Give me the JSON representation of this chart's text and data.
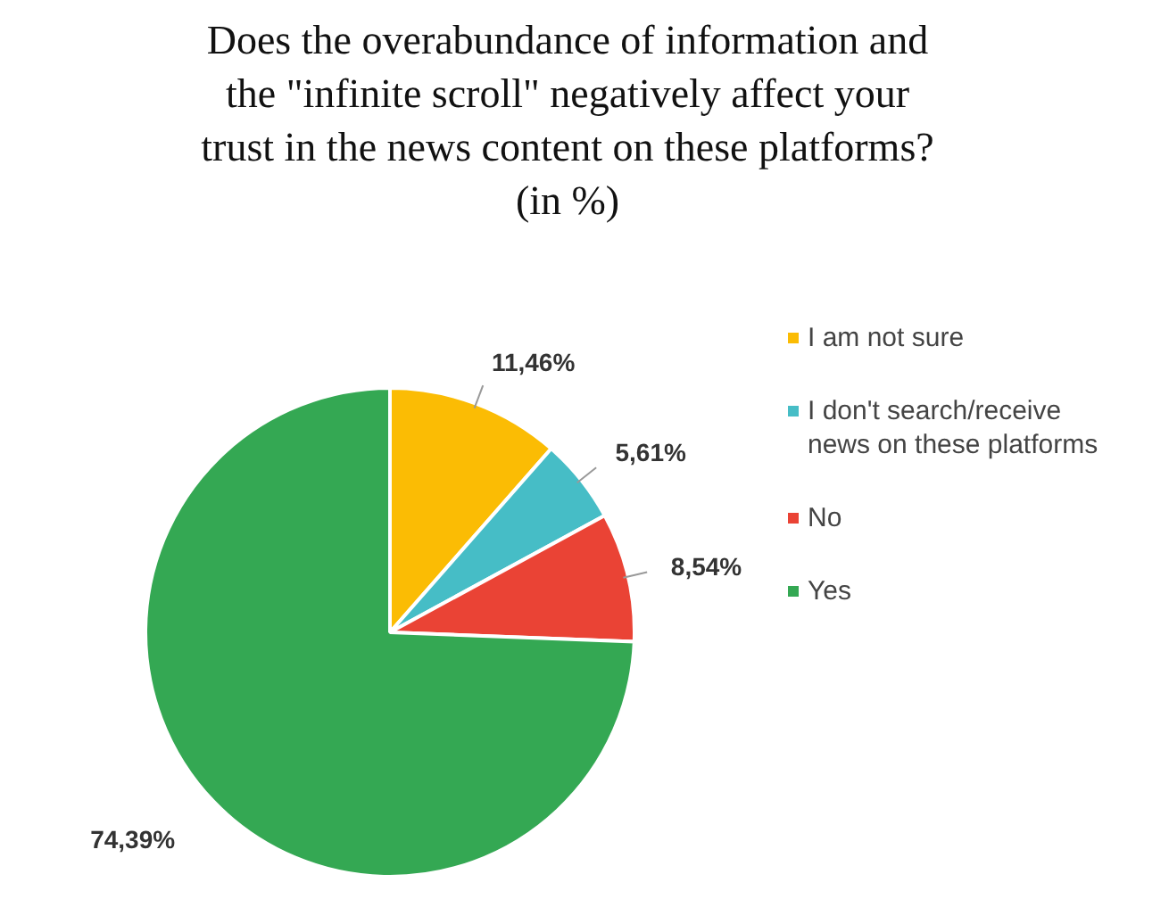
{
  "chart_data": {
    "type": "pie",
    "title": "Does the overabundance of information and\nthe \"infinite scroll\" negatively affect your\ntrust in the news content on these platforms?\n(in %)",
    "categories": [
      "I am not sure",
      "I don't search/receive news on these platforms",
      "No",
      "Yes"
    ],
    "values": [
      11.46,
      5.61,
      8.54,
      74.39
    ],
    "value_labels": [
      "11,46%",
      "5,61%",
      "8,54%",
      "74,39%"
    ],
    "colors": [
      "#fbbc04",
      "#46bdc6",
      "#ea4335",
      "#34a853"
    ],
    "legend": "right"
  }
}
